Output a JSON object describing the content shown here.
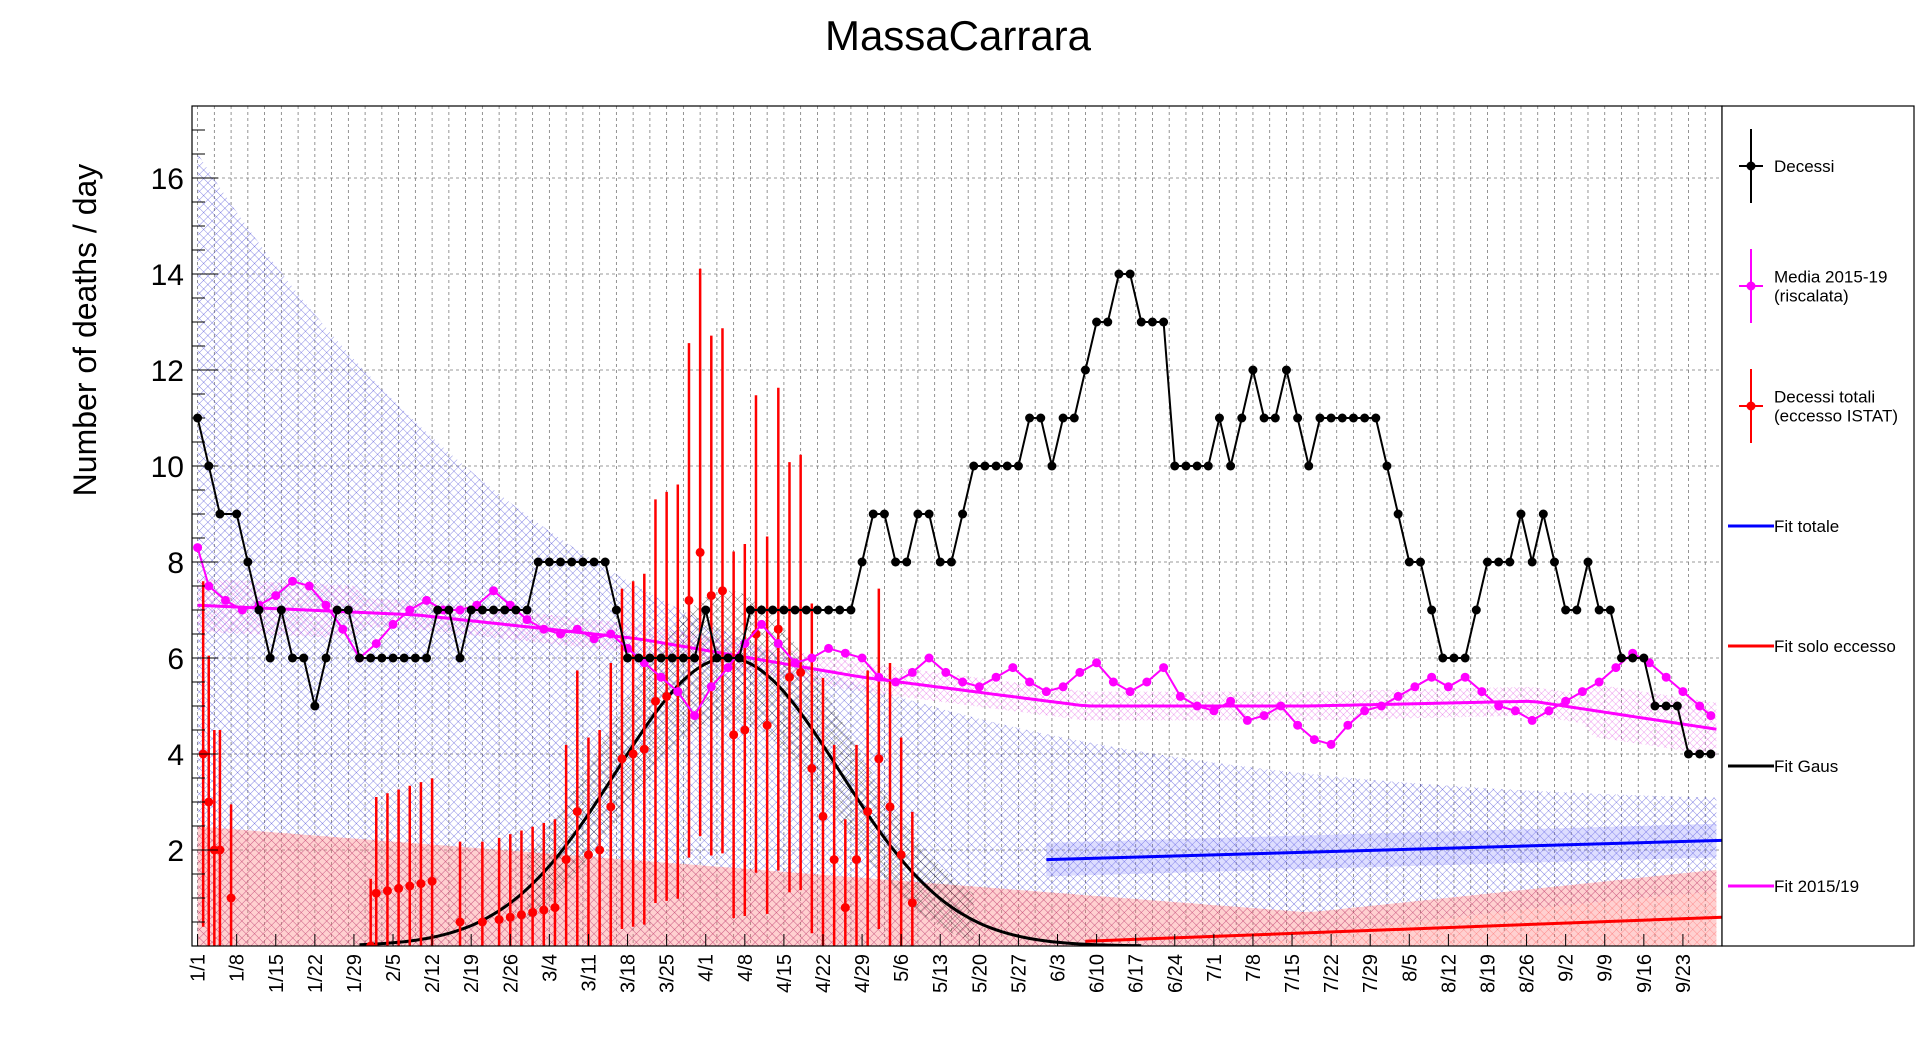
{
  "chart_data": {
    "type": "line",
    "title": "MassaCarrara",
    "xlabel": "",
    "ylabel": "Number of deaths / day",
    "ylim": [
      0,
      17.5
    ],
    "y_ticks": [
      2,
      4,
      6,
      8,
      10,
      12,
      14,
      16
    ],
    "y_tick_labels": [
      "2",
      "4",
      "6",
      "8",
      "10",
      "12",
      "14",
      "16"
    ],
    "x_range_days": [
      1,
      274
    ],
    "x_tick_labels": [
      "1/1",
      "1/8",
      "1/15",
      "1/22",
      "1/29",
      "2/5",
      "2/12",
      "2/19",
      "2/26",
      "3/4",
      "3/11",
      "3/18",
      "3/25",
      "4/1",
      "4/8",
      "4/15",
      "4/22",
      "4/29",
      "5/6",
      "5/13",
      "5/20",
      "5/27",
      "6/3",
      "6/10",
      "6/17",
      "6/24",
      "7/1",
      "7/8",
      "7/15",
      "7/22",
      "7/29",
      "8/5",
      "8/12",
      "8/19",
      "8/26",
      "9/2",
      "9/9",
      "9/16",
      "9/23"
    ],
    "grid": true,
    "legend_position": "right",
    "legend": [
      {
        "label": "Decessi",
        "color": "#000000",
        "kind": "marker"
      },
      {
        "label": "Media 2015-19\n(riscalata)",
        "color": "#ff00ff",
        "kind": "marker"
      },
      {
        "label": "Decessi totali\n(eccesso ISTAT)",
        "color": "#ff0000",
        "kind": "marker"
      },
      {
        "label": "Fit totale",
        "color": "#0000ff",
        "kind": "line"
      },
      {
        "label": "Fit solo eccesso",
        "color": "#ff0000",
        "kind": "line"
      },
      {
        "label": "Fit Gaus",
        "color": "#000000",
        "kind": "line"
      },
      {
        "label": "Fit 2015/19",
        "color": "#ff00ff",
        "kind": "line"
      }
    ],
    "series": [
      {
        "name": "Decessi",
        "color": "#000000",
        "points": [
          [
            1,
            11
          ],
          [
            3,
            10
          ],
          [
            5,
            9
          ],
          [
            8,
            9
          ],
          [
            10,
            8
          ],
          [
            12,
            7
          ],
          [
            14,
            6
          ],
          [
            16,
            7
          ],
          [
            18,
            6
          ],
          [
            20,
            6
          ],
          [
            22,
            5
          ],
          [
            24,
            6
          ],
          [
            26,
            7
          ],
          [
            28,
            7
          ],
          [
            30,
            6
          ],
          [
            32,
            6
          ],
          [
            34,
            6
          ],
          [
            36,
            6
          ],
          [
            38,
            6
          ],
          [
            40,
            6
          ],
          [
            42,
            6
          ],
          [
            44,
            7
          ],
          [
            46,
            7
          ],
          [
            48,
            6
          ],
          [
            50,
            7
          ],
          [
            52,
            7
          ],
          [
            54,
            7
          ],
          [
            56,
            7
          ],
          [
            58,
            7
          ],
          [
            60,
            7
          ],
          [
            62,
            8
          ],
          [
            64,
            8
          ],
          [
            66,
            8
          ],
          [
            68,
            8
          ],
          [
            70,
            8
          ],
          [
            72,
            8
          ],
          [
            74,
            8
          ],
          [
            76,
            7
          ],
          [
            78,
            6
          ],
          [
            80,
            6
          ],
          [
            82,
            6
          ],
          [
            84,
            6
          ],
          [
            86,
            6
          ],
          [
            88,
            6
          ],
          [
            90,
            6
          ],
          [
            92,
            7
          ],
          [
            94,
            6
          ],
          [
            96,
            6
          ],
          [
            98,
            6
          ],
          [
            100,
            7
          ],
          [
            102,
            7
          ],
          [
            104,
            7
          ],
          [
            106,
            7
          ],
          [
            108,
            7
          ],
          [
            110,
            7
          ],
          [
            112,
            7
          ],
          [
            114,
            7
          ],
          [
            116,
            7
          ],
          [
            118,
            7
          ],
          [
            120,
            8
          ],
          [
            122,
            9
          ],
          [
            124,
            9
          ],
          [
            126,
            8
          ],
          [
            128,
            8
          ],
          [
            130,
            9
          ],
          [
            132,
            9
          ],
          [
            134,
            8
          ],
          [
            136,
            8
          ],
          [
            138,
            9
          ],
          [
            140,
            10
          ],
          [
            142,
            10
          ],
          [
            144,
            10
          ],
          [
            146,
            10
          ],
          [
            148,
            10
          ],
          [
            150,
            11
          ],
          [
            152,
            11
          ],
          [
            154,
            10
          ],
          [
            156,
            11
          ],
          [
            158,
            11
          ],
          [
            160,
            12
          ],
          [
            162,
            13
          ],
          [
            164,
            13
          ],
          [
            166,
            14
          ],
          [
            168,
            14
          ],
          [
            170,
            13
          ],
          [
            172,
            13
          ],
          [
            174,
            13
          ],
          [
            176,
            10
          ],
          [
            178,
            10
          ],
          [
            180,
            10
          ],
          [
            182,
            10
          ],
          [
            184,
            11
          ],
          [
            186,
            10
          ],
          [
            188,
            11
          ],
          [
            190,
            12
          ],
          [
            192,
            11
          ],
          [
            194,
            11
          ],
          [
            196,
            12
          ],
          [
            198,
            11
          ],
          [
            200,
            10
          ],
          [
            202,
            11
          ],
          [
            204,
            11
          ],
          [
            206,
            11
          ],
          [
            208,
            11
          ],
          [
            210,
            11
          ],
          [
            212,
            11
          ],
          [
            214,
            10
          ],
          [
            216,
            9
          ],
          [
            218,
            8
          ],
          [
            220,
            8
          ],
          [
            222,
            7
          ],
          [
            224,
            6
          ],
          [
            226,
            6
          ],
          [
            228,
            6
          ],
          [
            230,
            7
          ],
          [
            232,
            8
          ],
          [
            234,
            8
          ],
          [
            236,
            8
          ],
          [
            238,
            9
          ],
          [
            240,
            8
          ],
          [
            242,
            9
          ],
          [
            244,
            8
          ],
          [
            246,
            7
          ],
          [
            248,
            7
          ],
          [
            250,
            8
          ],
          [
            252,
            7
          ],
          [
            254,
            7
          ],
          [
            256,
            6
          ],
          [
            258,
            6
          ],
          [
            260,
            6
          ],
          [
            262,
            5
          ],
          [
            264,
            5
          ],
          [
            266,
            5
          ],
          [
            268,
            4
          ],
          [
            270,
            4
          ],
          [
            272,
            4
          ]
        ]
      },
      {
        "name": "Media 2015-19 (riscalata)",
        "color": "#ff00ff",
        "points": [
          [
            1,
            8.3
          ],
          [
            3,
            7.5
          ],
          [
            6,
            7.2
          ],
          [
            9,
            7.0
          ],
          [
            12,
            7.1
          ],
          [
            15,
            7.3
          ],
          [
            18,
            7.6
          ],
          [
            21,
            7.5
          ],
          [
            24,
            7.1
          ],
          [
            27,
            6.6
          ],
          [
            30,
            6.0
          ],
          [
            33,
            6.3
          ],
          [
            36,
            6.7
          ],
          [
            39,
            7.0
          ],
          [
            42,
            7.2
          ],
          [
            45,
            7.0
          ],
          [
            48,
            7.0
          ],
          [
            51,
            7.1
          ],
          [
            54,
            7.4
          ],
          [
            57,
            7.1
          ],
          [
            60,
            6.8
          ],
          [
            63,
            6.6
          ],
          [
            66,
            6.5
          ],
          [
            69,
            6.6
          ],
          [
            72,
            6.4
          ],
          [
            75,
            6.5
          ],
          [
            78,
            6.2
          ],
          [
            81,
            5.9
          ],
          [
            84,
            5.6
          ],
          [
            87,
            5.3
          ],
          [
            90,
            4.8
          ],
          [
            93,
            5.4
          ],
          [
            96,
            5.8
          ],
          [
            99,
            6.3
          ],
          [
            102,
            6.7
          ],
          [
            105,
            6.3
          ],
          [
            108,
            5.9
          ],
          [
            111,
            6.0
          ],
          [
            114,
            6.2
          ],
          [
            117,
            6.1
          ],
          [
            120,
            6.0
          ],
          [
            123,
            5.6
          ],
          [
            126,
            5.5
          ],
          [
            129,
            5.7
          ],
          [
            132,
            6.0
          ],
          [
            135,
            5.7
          ],
          [
            138,
            5.5
          ],
          [
            141,
            5.4
          ],
          [
            144,
            5.6
          ],
          [
            147,
            5.8
          ],
          [
            150,
            5.5
          ],
          [
            153,
            5.3
          ],
          [
            156,
            5.4
          ],
          [
            159,
            5.7
          ],
          [
            162,
            5.9
          ],
          [
            165,
            5.5
          ],
          [
            168,
            5.3
          ],
          [
            171,
            5.5
          ],
          [
            174,
            5.8
          ],
          [
            177,
            5.2
          ],
          [
            180,
            5.0
          ],
          [
            183,
            4.9
          ],
          [
            186,
            5.1
          ],
          [
            189,
            4.7
          ],
          [
            192,
            4.8
          ],
          [
            195,
            5.0
          ],
          [
            198,
            4.6
          ],
          [
            201,
            4.3
          ],
          [
            204,
            4.2
          ],
          [
            207,
            4.6
          ],
          [
            210,
            4.9
          ],
          [
            213,
            5.0
          ],
          [
            216,
            5.2
          ],
          [
            219,
            5.4
          ],
          [
            222,
            5.6
          ],
          [
            225,
            5.4
          ],
          [
            228,
            5.6
          ],
          [
            231,
            5.3
          ],
          [
            234,
            5.0
          ],
          [
            237,
            4.9
          ],
          [
            240,
            4.7
          ],
          [
            243,
            4.9
          ],
          [
            246,
            5.1
          ],
          [
            249,
            5.3
          ],
          [
            252,
            5.5
          ],
          [
            255,
            5.8
          ],
          [
            258,
            6.1
          ],
          [
            261,
            5.9
          ],
          [
            264,
            5.6
          ],
          [
            267,
            5.3
          ],
          [
            270,
            5.0
          ],
          [
            272,
            4.8
          ]
        ]
      },
      {
        "name": "Decessi totali (eccesso ISTAT)",
        "color": "#ff0000",
        "points": [
          [
            2,
            4.0
          ],
          [
            3,
            3.0
          ],
          [
            4,
            2.0
          ],
          [
            5,
            2.0
          ],
          [
            7,
            1.0
          ],
          [
            32,
            0.0
          ],
          [
            33,
            1.1
          ],
          [
            35,
            1.15
          ],
          [
            37,
            1.2
          ],
          [
            39,
            1.25
          ],
          [
            41,
            1.3
          ],
          [
            43,
            1.35
          ],
          [
            48,
            0.5
          ],
          [
            52,
            0.5
          ],
          [
            55,
            0.55
          ],
          [
            57,
            0.6
          ],
          [
            59,
            0.65
          ],
          [
            61,
            0.7
          ],
          [
            63,
            0.75
          ],
          [
            65,
            0.8
          ],
          [
            67,
            1.8
          ],
          [
            69,
            2.8
          ],
          [
            71,
            1.9
          ],
          [
            73,
            2.0
          ],
          [
            75,
            2.9
          ],
          [
            77,
            3.9
          ],
          [
            79,
            4.0
          ],
          [
            81,
            4.1
          ],
          [
            83,
            5.1
          ],
          [
            85,
            5.2
          ],
          [
            87,
            5.3
          ],
          [
            89,
            7.2
          ],
          [
            91,
            8.2
          ],
          [
            93,
            7.3
          ],
          [
            95,
            7.4
          ],
          [
            97,
            4.4
          ],
          [
            99,
            4.5
          ],
          [
            101,
            6.5
          ],
          [
            103,
            4.6
          ],
          [
            105,
            6.6
          ],
          [
            107,
            5.6
          ],
          [
            109,
            5.7
          ],
          [
            111,
            3.7
          ],
          [
            113,
            2.7
          ],
          [
            115,
            1.8
          ],
          [
            117,
            0.8
          ],
          [
            119,
            1.8
          ],
          [
            121,
            2.8
          ],
          [
            123,
            3.9
          ],
          [
            125,
            2.9
          ],
          [
            127,
            1.9
          ],
          [
            129,
            0.9
          ]
        ]
      }
    ],
    "fit_gaus": {
      "name": "Fit Gaus",
      "color": "#000000",
      "amplitude": 6.0,
      "mean": 96,
      "sigma": 20
    },
    "fit_totale": {
      "name": "Fit totale",
      "color": "#0000ff",
      "x": [
        153,
        274
      ],
      "y": [
        1.8,
        2.2
      ]
    },
    "fit_solo_eccesso": {
      "name": "Fit solo eccesso",
      "color": "#ff0000",
      "x": [
        160,
        274
      ],
      "y": [
        0.1,
        0.6
      ]
    },
    "fit_2015_19": {
      "name": "Fit 2015/19",
      "color": "#ff00ff",
      "points": [
        [
          1,
          7.1
        ],
        [
          40,
          6.9
        ],
        [
          80,
          6.4
        ],
        [
          120,
          5.6
        ],
        [
          160,
          5.0
        ],
        [
          200,
          5.0
        ],
        [
          240,
          5.1
        ],
        [
          274,
          4.5
        ]
      ]
    }
  },
  "colors": {
    "decessi": "#000000",
    "media": "#ff00ff",
    "eccesso": "#ff0000",
    "fit_totale": "#0000ff",
    "fit_gaus": "#000000"
  }
}
